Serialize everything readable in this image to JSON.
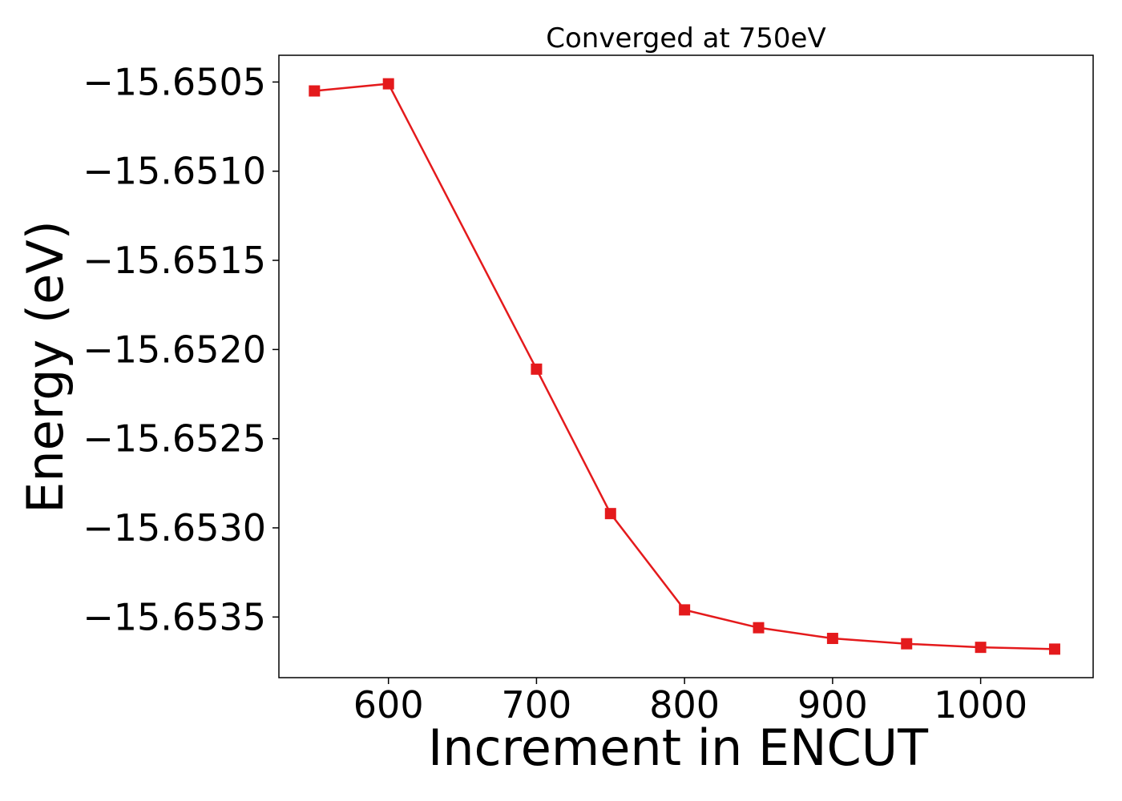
{
  "chart_data": {
    "type": "line",
    "title": "Converged at 750eV",
    "xlabel": "Increment in ENCUT",
    "ylabel": "Energy (eV)",
    "x": [
      550,
      600,
      700,
      750,
      800,
      850,
      900,
      950,
      1000,
      1050
    ],
    "series": [
      {
        "values": [
          -15.65055,
          -15.65051,
          -15.65211,
          -15.65292,
          -15.65346,
          -15.65356,
          -15.65362,
          -15.65365,
          -15.65367,
          -15.65368
        ],
        "color": "#e41a1c",
        "marker": "square"
      }
    ],
    "xlim": [
      526,
      1076
    ],
    "ylim": [
      -15.65384,
      -15.65035
    ],
    "xticks": [
      600,
      700,
      800,
      900,
      1000
    ],
    "xtick_labels": [
      "600",
      "700",
      "800",
      "900",
      "1000"
    ],
    "yticks": [
      -15.6505,
      -15.651,
      -15.6515,
      -15.652,
      -15.6525,
      -15.653,
      -15.6535
    ],
    "ytick_labels": [
      "−15.6505",
      "−15.6510",
      "−15.6515",
      "−15.6520",
      "−15.6525",
      "−15.6530",
      "−15.6535"
    ],
    "grid": false,
    "legend": "none"
  }
}
